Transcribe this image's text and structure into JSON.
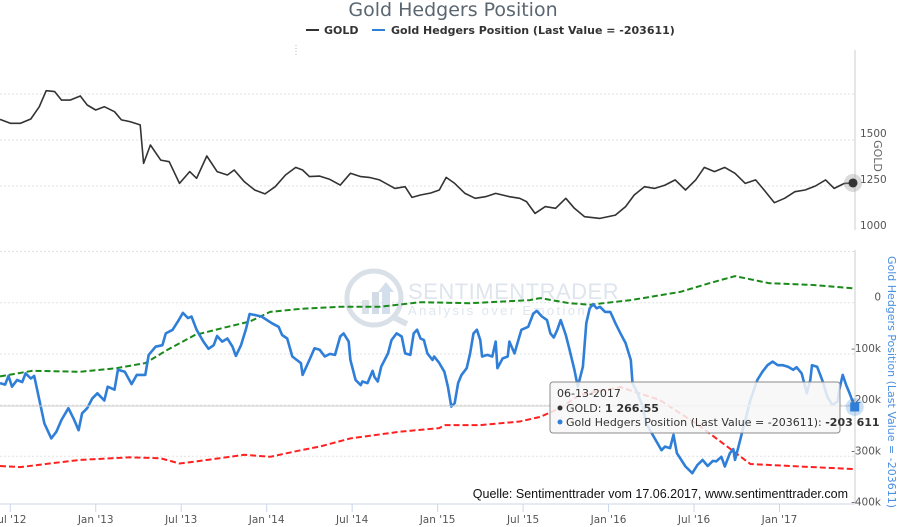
{
  "chart_data": [
    {
      "type": "line",
      "pane": "top",
      "title": "Gold Hedgers Position",
      "ylabel": "GOLD",
      "ylim": [
        950,
        1990
      ],
      "yticks": [
        1000,
        1250,
        1500
      ],
      "ygrid": [
        1250,
        1500,
        1750
      ],
      "series": [
        {
          "name": "GOLD",
          "color": "#333333",
          "x": [
            2012.44,
            2012.5,
            2012.56,
            2012.62,
            2012.67,
            2012.71,
            2012.76,
            2012.8,
            2012.85,
            2012.91,
            2012.95,
            2013.0,
            2013.05,
            2013.11,
            2013.15,
            2013.2,
            2013.26,
            2013.28,
            2013.32,
            2013.38,
            2013.43,
            2013.49,
            2013.55,
            2013.59,
            2013.65,
            2013.71,
            2013.77,
            2013.81,
            2013.87,
            2013.93,
            2013.99,
            2014.05,
            2014.11,
            2014.17,
            2014.21,
            2014.25,
            2014.31,
            2014.37,
            2014.43,
            2014.49,
            2014.55,
            2014.6,
            2014.66,
            2014.75,
            2014.81,
            2014.85,
            2014.9,
            2014.96,
            2015.01,
            2015.05,
            2015.1,
            2015.16,
            2015.22,
            2015.28,
            2015.34,
            2015.42,
            2015.48,
            2015.52,
            2015.57,
            2015.63,
            2015.69,
            2015.75,
            2015.8,
            2015.86,
            2015.95,
            2016.04,
            2016.1,
            2016.15,
            2016.21,
            2016.27,
            2016.33,
            2016.39,
            2016.45,
            2016.51,
            2016.56,
            2016.62,
            2016.68,
            2016.74,
            2016.8,
            2016.86,
            2016.91,
            2016.97,
            2017.03,
            2017.09,
            2017.15,
            2017.21,
            2017.27,
            2017.32,
            2017.38,
            2017.43
          ],
          "y": [
            1612,
            1591,
            1591,
            1614,
            1681,
            1768,
            1763,
            1717,
            1717,
            1739,
            1690,
            1663,
            1681,
            1654,
            1609,
            1600,
            1582,
            1373,
            1473,
            1391,
            1382,
            1264,
            1328,
            1292,
            1413,
            1328,
            1310,
            1337,
            1273,
            1228,
            1207,
            1246,
            1310,
            1351,
            1337,
            1301,
            1304,
            1286,
            1255,
            1319,
            1301,
            1297,
            1283,
            1237,
            1246,
            1188,
            1201,
            1212,
            1228,
            1297,
            1264,
            1210,
            1183,
            1192,
            1210,
            1192,
            1183,
            1165,
            1101,
            1138,
            1129,
            1183,
            1129,
            1083,
            1074,
            1092,
            1138,
            1201,
            1246,
            1237,
            1255,
            1283,
            1228,
            1283,
            1351,
            1328,
            1351,
            1319,
            1264,
            1283,
            1228,
            1159,
            1183,
            1219,
            1228,
            1250,
            1283,
            1237,
            1264,
            1266.55
          ]
        }
      ]
    },
    {
      "type": "line",
      "pane": "bottom",
      "ylabel": "Gold Hedgers Position (Last Value = -203611)",
      "ylim": [
        -400,
        95
      ],
      "yunit": "k",
      "yticks": [
        0,
        -100,
        -200,
        -300,
        -400
      ],
      "ytick_labels": [
        "0",
        "-100k",
        "-200k",
        "-300k",
        "-400k"
      ],
      "ygrid": [
        100,
        0,
        -100,
        -200,
        -300
      ],
      "series": [
        {
          "name": "Gold Hedgers Position (Last Value = -203611)",
          "color": "#2f7ed8",
          "x": [
            2012.44,
            2012.47,
            2012.49,
            2012.51,
            2012.54,
            2012.57,
            2012.59,
            2012.62,
            2012.64,
            2012.7,
            2012.74,
            2012.77,
            2012.8,
            2012.84,
            2012.87,
            2012.9,
            2012.92,
            2012.95,
            2012.98,
            2013.01,
            2013.05,
            2013.07,
            2013.11,
            2013.13,
            2013.17,
            2013.21,
            2013.24,
            2013.29,
            2013.31,
            2013.35,
            2013.39,
            2013.41,
            2013.45,
            2013.48,
            2013.51,
            2013.54,
            2013.56,
            2013.59,
            2013.63,
            2013.66,
            2013.69,
            2013.71,
            2013.74,
            2013.77,
            2013.8,
            2013.82,
            2013.85,
            2013.88,
            2013.9,
            2013.93,
            2013.97,
            2014.03,
            2014.07,
            2014.09,
            2014.12,
            2014.15,
            2014.2,
            2014.21,
            2014.25,
            2014.28,
            2014.31,
            2014.34,
            2014.37,
            2014.4,
            2014.43,
            2014.45,
            2014.48,
            2014.49,
            2014.52,
            2014.55,
            2014.56,
            2014.59,
            2014.62,
            2014.63,
            2014.65,
            2014.67,
            2014.71,
            2014.73,
            2014.76,
            2014.79,
            2014.81,
            2014.84,
            2014.86,
            2014.88,
            2014.9,
            2014.92,
            2014.94,
            2014.97,
            2014.98,
            2015.01,
            2015.04,
            2015.06,
            2015.08,
            2015.1,
            2015.12,
            2015.14,
            2015.17,
            2015.19,
            2015.21,
            2015.23,
            2015.25,
            2015.26,
            2015.29,
            2015.32,
            2015.34,
            2015.35,
            2015.38,
            2015.41,
            2015.42,
            2015.45,
            2015.47,
            2015.49,
            2015.53,
            2015.56,
            2015.58,
            2015.61,
            2015.64,
            2015.66,
            2015.68,
            2015.7,
            2015.72,
            2015.75,
            2015.77,
            2015.8,
            2015.82,
            2015.85,
            2015.87,
            2015.89,
            2015.91,
            2015.93,
            2015.95,
            2015.98,
            2016.01,
            2016.04,
            2016.07,
            2016.1,
            2016.13,
            2016.14,
            2016.17,
            2016.2,
            2016.22,
            2016.27,
            2016.31,
            2016.33,
            2016.36,
            2016.38,
            2016.4,
            2016.45,
            2016.49,
            2016.52,
            2016.55,
            2016.58,
            2016.61,
            2016.63,
            2016.66,
            2016.68,
            2016.71,
            2016.73,
            2016.74,
            2016.76,
            2016.79,
            2016.83,
            2016.87,
            2016.9,
            2016.93,
            2016.96,
            2016.99,
            2017.02,
            2017.05,
            2017.08,
            2017.1,
            2017.13,
            2017.16,
            2017.18,
            2017.19,
            2017.22,
            2017.25,
            2017.28,
            2017.31,
            2017.34,
            2017.35,
            2017.37,
            2017.39,
            2017.41,
            2017.44
          ],
          "y": [
            -157,
            -160,
            -143,
            -164,
            -151,
            -155,
            -138,
            -148,
            -143,
            -236,
            -265,
            -252,
            -229,
            -206,
            -226,
            -249,
            -216,
            -206,
            -187,
            -177,
            -191,
            -164,
            -170,
            -131,
            -135,
            -159,
            -141,
            -141,
            -102,
            -86,
            -83,
            -60,
            -53,
            -37,
            -20,
            -30,
            -27,
            -53,
            -76,
            -90,
            -83,
            -65,
            -76,
            -70,
            -86,
            -104,
            -83,
            -50,
            -22,
            -24,
            -27,
            -40,
            -47,
            -63,
            -70,
            -105,
            -118,
            -141,
            -112,
            -89,
            -92,
            -105,
            -100,
            -102,
            -66,
            -60,
            -76,
            -112,
            -151,
            -161,
            -154,
            -157,
            -133,
            -145,
            -154,
            -125,
            -99,
            -73,
            -60,
            -66,
            -99,
            -102,
            -60,
            -53,
            -70,
            -73,
            -99,
            -112,
            -105,
            -118,
            -135,
            -164,
            -203,
            -196,
            -157,
            -141,
            -128,
            -99,
            -60,
            -53,
            -73,
            -105,
            -102,
            -105,
            -76,
            -128,
            -109,
            -105,
            -76,
            -99,
            -76,
            -53,
            -47,
            -21,
            -16,
            -27,
            -34,
            -60,
            -68,
            -53,
            -34,
            -63,
            -89,
            -131,
            -164,
            -125,
            -40,
            -11,
            -3,
            -11,
            -8,
            -18,
            -18,
            -40,
            -60,
            -79,
            -112,
            -157,
            -177,
            -203,
            -236,
            -265,
            -288,
            -281,
            -284,
            -258,
            -294,
            -320,
            -333,
            -317,
            -307,
            -319,
            -309,
            -310,
            -301,
            -320,
            -294,
            -286,
            -307,
            -281,
            -242,
            -190,
            -151,
            -135,
            -122,
            -115,
            -122,
            -122,
            -125,
            -131,
            -126,
            -138,
            -177,
            -151,
            -122,
            -125,
            -151,
            -184,
            -200,
            -193,
            -170,
            -141,
            -161,
            -177,
            -203.611
          ]
        },
        {
          "name": "upper-band",
          "color": "#1a8a1a",
          "dashed": true,
          "x": [
            2012.44,
            2012.63,
            2012.91,
            2013.12,
            2013.29,
            2013.42,
            2013.58,
            2013.76,
            2013.9,
            2014.02,
            2014.2,
            2014.43,
            2014.66,
            2014.9,
            2015.19,
            2015.54,
            2015.6,
            2015.77,
            2015.89,
            2016.13,
            2016.42,
            2016.59,
            2016.74,
            2016.94,
            2017.18,
            2017.44
          ],
          "y": [
            -144,
            -133,
            -135,
            -128,
            -118,
            -92,
            -63,
            -48,
            -37,
            -18,
            -12,
            -8,
            -8,
            1,
            -1,
            5,
            9,
            -1,
            -4,
            5,
            21,
            38,
            52,
            38,
            35,
            28
          ]
        },
        {
          "name": "lower-band",
          "color": "#ff2020",
          "dashed": true,
          "x": [
            2012.44,
            2012.56,
            2012.73,
            2012.91,
            2013.2,
            2013.38,
            2013.49,
            2013.61,
            2013.87,
            2014.02,
            2014.2,
            2014.31,
            2014.49,
            2014.78,
            2015.01,
            2015.04,
            2015.25,
            2015.48,
            2015.6,
            2015.72,
            2015.83,
            2016.07,
            2016.3,
            2016.53,
            2016.71,
            2016.83,
            2017.12,
            2017.44
          ],
          "y": [
            -319,
            -321,
            -314,
            -307,
            -302,
            -304,
            -314,
            -309,
            -297,
            -301,
            -288,
            -281,
            -265,
            -252,
            -245,
            -239,
            -239,
            -232,
            -223,
            -205,
            -180,
            -165,
            -190,
            -240,
            -285,
            -315,
            -320,
            -325
          ]
        }
      ]
    }
  ],
  "title": "Gold Hedgers Position",
  "legend": {
    "gold_label": "GOLD",
    "hedgers_label": "Gold Hedgers Position (Last Value = -203611)"
  },
  "x_axis": {
    "ticks": [
      {
        "value": 2012.5,
        "label": "Jul '12"
      },
      {
        "value": 2013.0,
        "label": "Jan '13"
      },
      {
        "value": 2013.5,
        "label": "Jul '13"
      },
      {
        "value": 2014.0,
        "label": "Jan '14"
      },
      {
        "value": 2014.5,
        "label": "Jul '14"
      },
      {
        "value": 2015.0,
        "label": "Jan '15"
      },
      {
        "value": 2015.5,
        "label": "Jul '15"
      },
      {
        "value": 2016.0,
        "label": "Jan '16"
      },
      {
        "value": 2016.5,
        "label": "Jul '16"
      },
      {
        "value": 2017.0,
        "label": "Jan '17"
      }
    ]
  },
  "top_axis": {
    "title": "GOLD",
    "ticks": [
      "1500",
      "1250",
      "1000"
    ],
    "tick_values": [
      1500,
      1250,
      1000
    ]
  },
  "bottom_axis": {
    "title": "Gold Hedgers Position (Last Value = -203611)",
    "ticks": [
      "0",
      "-100k",
      "-200k",
      "-300k",
      "-400k"
    ],
    "tick_values": [
      0,
      -100,
      -200,
      -300,
      -400
    ]
  },
  "tooltip": {
    "date": "06-13-2017",
    "gold_label": "GOLD: ",
    "gold_value": "1 266.55",
    "hedgers_label": "Gold Hedgers Position (Last Value = -203611): ",
    "hedgers_value": "-203 611"
  },
  "watermark": {
    "brand": "SENTIMENTRADER",
    "tagline": "Analysis over Emotion"
  },
  "source": "Quelle: Sentimenttrader vom 17.06.2017, www.sentimenttrader.com",
  "colors": {
    "gold": "#333333",
    "hedgers": "#2f7ed8",
    "upper": "#1a8a1a",
    "lower": "#ff2020",
    "axis_title_blue": "#4a8fe0"
  }
}
